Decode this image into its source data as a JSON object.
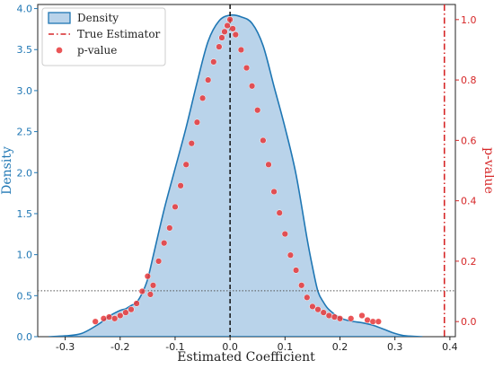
{
  "chart_data": {
    "type": "area",
    "xlabel": "Estimated Coefficient",
    "ylabel_left": "Density",
    "ylabel_right": "p-value",
    "xlim": [
      -0.35,
      0.41
    ],
    "ylim_left": [
      0.0,
      4.05
    ],
    "ylim_right": [
      -0.05,
      1.05
    ],
    "x_ticks": [
      "-0.3",
      "-0.2",
      "-0.1",
      "0.0",
      "0.1",
      "0.2",
      "0.3",
      "0.4"
    ],
    "y_ticks_left": [
      "0.0",
      "0.5",
      "1.0",
      "1.5",
      "2.0",
      "2.5",
      "3.0",
      "3.5",
      "4.0"
    ],
    "y_ticks_right": [
      "0.0",
      "0.2",
      "0.4",
      "0.6",
      "0.8",
      "1.0"
    ],
    "legend": {
      "position": "top-left",
      "entries": [
        "Density",
        "True Estimator",
        "p-value"
      ]
    },
    "colors": {
      "density_fill": "#b9d3ea",
      "density_line": "#1f77b4",
      "estimator": "#d62728",
      "points": "#e6373a",
      "left_axis": "#1f77b4",
      "right_axis": "#d62728"
    },
    "series": [
      {
        "name": "Density",
        "type": "area",
        "x": [
          -0.33,
          -0.3,
          -0.27,
          -0.24,
          -0.22,
          -0.2,
          -0.19,
          -0.18,
          -0.17,
          -0.16,
          -0.15,
          -0.14,
          -0.12,
          -0.1,
          -0.08,
          -0.06,
          -0.04,
          -0.02,
          0.0,
          0.02,
          0.04,
          0.06,
          0.08,
          0.1,
          0.12,
          0.14,
          0.15,
          0.16,
          0.17,
          0.18,
          0.2,
          0.22,
          0.24,
          0.26,
          0.28,
          0.3,
          0.32,
          0.35
        ],
        "y": [
          0.0,
          0.01,
          0.04,
          0.15,
          0.25,
          0.32,
          0.34,
          0.38,
          0.42,
          0.53,
          0.7,
          0.98,
          1.55,
          2.05,
          2.55,
          3.1,
          3.6,
          3.85,
          3.92,
          3.9,
          3.82,
          3.55,
          3.05,
          2.55,
          1.98,
          1.2,
          0.85,
          0.55,
          0.42,
          0.33,
          0.23,
          0.19,
          0.17,
          0.14,
          0.09,
          0.04,
          0.01,
          0.0
        ]
      },
      {
        "name": "True Estimator",
        "type": "vline",
        "x": 0.39
      },
      {
        "name": "p-value",
        "type": "scatter",
        "x": [
          -0.245,
          -0.23,
          -0.22,
          -0.21,
          -0.2,
          -0.19,
          -0.18,
          -0.17,
          -0.16,
          -0.15,
          -0.145,
          -0.14,
          -0.13,
          -0.12,
          -0.11,
          -0.1,
          -0.09,
          -0.08,
          -0.07,
          -0.06,
          -0.05,
          -0.04,
          -0.03,
          -0.02,
          -0.015,
          -0.01,
          -0.005,
          0.0,
          0.005,
          0.01,
          0.02,
          0.03,
          0.04,
          0.05,
          0.06,
          0.07,
          0.08,
          0.09,
          0.1,
          0.11,
          0.12,
          0.13,
          0.14,
          0.15,
          0.16,
          0.17,
          0.18,
          0.19,
          0.2,
          0.22,
          0.24,
          0.25,
          0.26,
          0.27
        ],
        "y": [
          0.0,
          0.01,
          0.015,
          0.01,
          0.02,
          0.03,
          0.04,
          0.06,
          0.1,
          0.15,
          0.09,
          0.12,
          0.2,
          0.26,
          0.31,
          0.38,
          0.45,
          0.52,
          0.59,
          0.66,
          0.74,
          0.8,
          0.86,
          0.91,
          0.94,
          0.96,
          0.98,
          1.0,
          0.97,
          0.95,
          0.9,
          0.84,
          0.78,
          0.7,
          0.6,
          0.52,
          0.43,
          0.36,
          0.29,
          0.22,
          0.17,
          0.12,
          0.08,
          0.05,
          0.04,
          0.03,
          0.02,
          0.015,
          0.01,
          0.01,
          0.02,
          0.005,
          0.0,
          0.0
        ]
      }
    ],
    "reference_lines": {
      "vertical_dashed_x": 0.0,
      "horizontal_dotted_y": 0.56
    }
  }
}
